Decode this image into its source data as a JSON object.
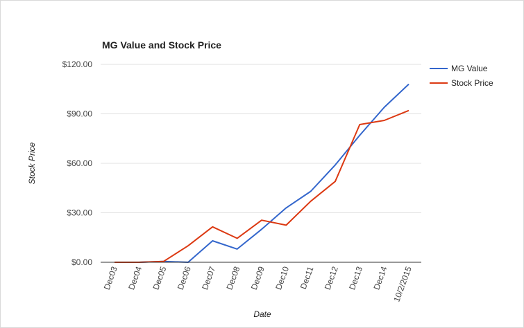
{
  "chart_data": {
    "type": "line",
    "title": "MG Value and Stock Price",
    "xlabel": "Date",
    "ylabel": "Stock Price",
    "categories": [
      "Dec03",
      "Dec04",
      "Dec05",
      "Dec06",
      "Dec07",
      "Dec08",
      "Dec09",
      "Dec10",
      "Dec11",
      "Dec12",
      "Dec13",
      "Dec14",
      "10/2/2015"
    ],
    "y_ticks": [
      "$0.00",
      "$30.00",
      "$60.00",
      "$90.00",
      "$120.00"
    ],
    "ylim": [
      0,
      120
    ],
    "grid": true,
    "legend_position": "right",
    "series": [
      {
        "name": "MG Value",
        "color": "#3366cc",
        "values": [
          0,
          0,
          0.5,
          0,
          13,
          8,
          20,
          33,
          43,
          59,
          77,
          94,
          108
        ]
      },
      {
        "name": "Stock Price",
        "color": "#dc3912",
        "values": [
          0,
          0,
          0.5,
          10,
          21.5,
          14.5,
          25.5,
          22.5,
          37,
          49,
          83.5,
          86,
          92
        ]
      }
    ]
  }
}
